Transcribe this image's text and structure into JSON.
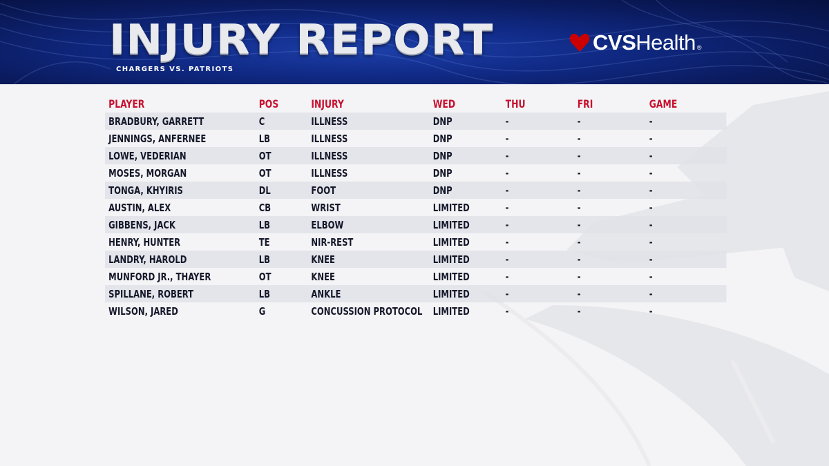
{
  "header": {
    "title": "INJURY REPORT",
    "subtitle": "CHARGERS VS. PATRIOTS",
    "sponsor": {
      "bold": "CVS",
      "light": "Health",
      "mark": "®",
      "icon": "heart-icon"
    }
  },
  "colors": {
    "header_blue": "#102a86",
    "accent_red": "#c8102e",
    "cvs_red": "#cc0000"
  },
  "table": {
    "columns": [
      "PLAYER",
      "POS",
      "INJURY",
      "WED",
      "THU",
      "FRI",
      "GAME"
    ],
    "rows": [
      [
        "BRADBURY, GARRETT",
        "C",
        "ILLNESS",
        "DNP",
        "-",
        "-",
        "-"
      ],
      [
        "JENNINGS, ANFERNEE",
        "LB",
        "ILLNESS",
        "DNP",
        "-",
        "-",
        "-"
      ],
      [
        "LOWE, VEDERIAN",
        "OT",
        "ILLNESS",
        "DNP",
        "-",
        "-",
        "-"
      ],
      [
        "MOSES, MORGAN",
        "OT",
        "ILLNESS",
        "DNP",
        "-",
        "-",
        "-"
      ],
      [
        "TONGA, KHYIRIS",
        "DL",
        "FOOT",
        "DNP",
        "-",
        "-",
        "-"
      ],
      [
        "AUSTIN, ALEX",
        "CB",
        "WRIST",
        "LIMITED",
        "-",
        "-",
        "-"
      ],
      [
        "GIBBENS, JACK",
        "LB",
        "ELBOW",
        "LIMITED",
        "-",
        "-",
        "-"
      ],
      [
        "HENRY, HUNTER",
        "TE",
        "NIR-REST",
        "LIMITED",
        "-",
        "-",
        "-"
      ],
      [
        "LANDRY, HAROLD",
        "LB",
        "KNEE",
        "LIMITED",
        "-",
        "-",
        "-"
      ],
      [
        "MUNFORD JR., THAYER",
        "OT",
        "KNEE",
        "LIMITED",
        "-",
        "-",
        "-"
      ],
      [
        "SPILLANE, ROBERT",
        "LB",
        "ANKLE",
        "LIMITED",
        "-",
        "-",
        "-"
      ],
      [
        "WILSON, JARED",
        "G",
        "CONCUSSION PROTOCOL",
        "LIMITED",
        "-",
        "-",
        "-"
      ]
    ]
  }
}
